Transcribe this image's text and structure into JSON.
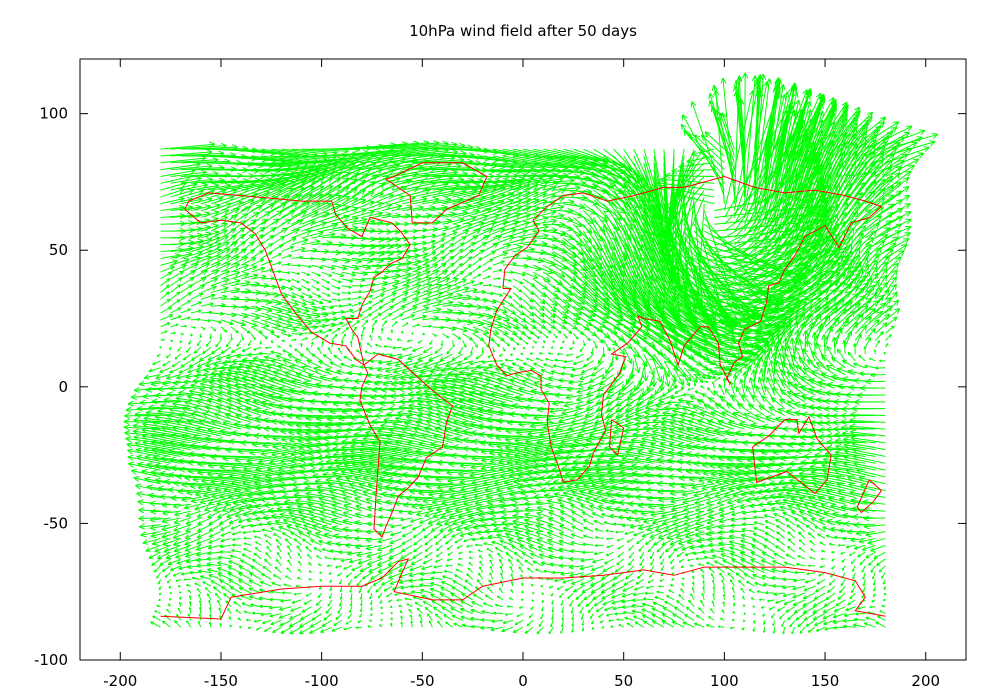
{
  "chart_data": {
    "type": "vector-field",
    "title": "10hPa wind field after 50 days",
    "xlabel": "",
    "ylabel": "",
    "xlim": [
      -220,
      220
    ],
    "ylim": [
      -100,
      120
    ],
    "x_ticks": [
      -200,
      -150,
      -100,
      -50,
      0,
      50,
      100,
      150,
      200
    ],
    "y_ticks": [
      -100,
      -50,
      0,
      50,
      100
    ],
    "grid": false,
    "legend": "none",
    "vector_color": "#00ff00",
    "coastline_color": "#ff0000",
    "frame_color": "#000000",
    "field_domain": {
      "lon": [
        -180,
        180
      ],
      "lat": [
        -88,
        88
      ]
    },
    "field_samples": [
      {
        "lat": 85,
        "u": 16,
        "v": 0
      },
      {
        "lat": 70,
        "u": 9,
        "v": 3
      },
      {
        "lat": 55,
        "u": 6,
        "v": 1
      },
      {
        "lat": 40,
        "u": 4,
        "v": 0.5
      },
      {
        "lat": 25,
        "u": 5,
        "v": 0
      },
      {
        "lat": 10,
        "u": -4,
        "v": 0
      },
      {
        "lat": 0,
        "u": -8,
        "v": 1
      },
      {
        "lat": -15,
        "u": -10,
        "v": 0.5
      },
      {
        "lat": -30,
        "u": -12,
        "v": 0
      },
      {
        "lat": -45,
        "u": -6,
        "v": 0
      },
      {
        "lat": -60,
        "u": -3,
        "v": 0
      },
      {
        "lat": -75,
        "u": -2,
        "v": 0
      },
      {
        "lat": -88,
        "u": -2,
        "v": 0
      }
    ],
    "vortex": {
      "lon": 95,
      "lat": 65,
      "strength": 30,
      "radius": 55
    },
    "coastlines": [
      {
        "name": "north-america",
        "points": [
          [
            -168,
            65
          ],
          [
            -160,
            60
          ],
          [
            -150,
            61
          ],
          [
            -140,
            60
          ],
          [
            -133,
            56
          ],
          [
            -128,
            50
          ],
          [
            -124,
            42
          ],
          [
            -120,
            34
          ],
          [
            -112,
            26
          ],
          [
            -105,
            20
          ],
          [
            -96,
            16
          ],
          [
            -88,
            15
          ],
          [
            -83,
            10
          ],
          [
            -79,
            8
          ],
          [
            -82,
            18
          ],
          [
            -85,
            21
          ],
          [
            -88,
            25
          ],
          [
            -82,
            25
          ],
          [
            -80,
            30
          ],
          [
            -76,
            35
          ],
          [
            -74,
            40
          ],
          [
            -70,
            42
          ],
          [
            -66,
            45
          ],
          [
            -60,
            47
          ],
          [
            -56,
            52
          ],
          [
            -61,
            57
          ],
          [
            -65,
            60
          ],
          [
            -76,
            62
          ],
          [
            -80,
            55
          ],
          [
            -87,
            58
          ],
          [
            -93,
            63
          ],
          [
            -95,
            68
          ],
          [
            -110,
            68
          ],
          [
            -125,
            69
          ],
          [
            -140,
            70
          ],
          [
            -156,
            71
          ],
          [
            -166,
            68
          ],
          [
            -168,
            65
          ]
        ]
      },
      {
        "name": "greenland",
        "points": [
          [
            -55,
            60
          ],
          [
            -45,
            60
          ],
          [
            -38,
            65
          ],
          [
            -22,
            70
          ],
          [
            -18,
            77
          ],
          [
            -30,
            82
          ],
          [
            -50,
            82
          ],
          [
            -64,
            77
          ],
          [
            -68,
            76
          ],
          [
            -56,
            70
          ],
          [
            -55,
            60
          ]
        ]
      },
      {
        "name": "south-america",
        "points": [
          [
            -79,
            8
          ],
          [
            -72,
            12
          ],
          [
            -62,
            10
          ],
          [
            -50,
            2
          ],
          [
            -44,
            -2
          ],
          [
            -35,
            -7
          ],
          [
            -38,
            -13
          ],
          [
            -40,
            -22
          ],
          [
            -48,
            -26
          ],
          [
            -52,
            -33
          ],
          [
            -57,
            -37
          ],
          [
            -62,
            -40
          ],
          [
            -65,
            -46
          ],
          [
            -68,
            -51
          ],
          [
            -70,
            -55
          ],
          [
            -74,
            -52
          ],
          [
            -73,
            -40
          ],
          [
            -72,
            -30
          ],
          [
            -71,
            -20
          ],
          [
            -76,
            -14
          ],
          [
            -81,
            -5
          ],
          [
            -80,
            0
          ],
          [
            -77,
            5
          ],
          [
            -79,
            8
          ]
        ]
      },
      {
        "name": "eurasia-africa",
        "points": [
          [
            -10,
            36
          ],
          [
            -9,
            43
          ],
          [
            -4,
            48
          ],
          [
            2,
            51
          ],
          [
            5,
            54
          ],
          [
            8,
            57
          ],
          [
            5,
            61
          ],
          [
            12,
            66
          ],
          [
            20,
            70
          ],
          [
            30,
            71
          ],
          [
            42,
            68
          ],
          [
            55,
            70
          ],
          [
            70,
            73
          ],
          [
            80,
            73
          ],
          [
            100,
            77
          ],
          [
            115,
            73
          ],
          [
            130,
            71
          ],
          [
            145,
            72
          ],
          [
            160,
            70
          ],
          [
            170,
            68
          ],
          [
            178,
            66
          ],
          [
            172,
            62
          ],
          [
            163,
            60
          ],
          [
            157,
            51
          ],
          [
            150,
            59
          ],
          [
            140,
            55
          ],
          [
            135,
            48
          ],
          [
            130,
            43
          ],
          [
            127,
            38
          ],
          [
            122,
            37
          ],
          [
            121,
            31
          ],
          [
            118,
            24
          ],
          [
            110,
            21
          ],
          [
            107,
            16
          ],
          [
            109,
            11
          ],
          [
            105,
            9
          ],
          [
            101,
            3
          ],
          [
            103,
            1
          ],
          [
            98,
            8
          ],
          [
            97,
            16
          ],
          [
            92,
            22
          ],
          [
            88,
            22
          ],
          [
            80,
            15
          ],
          [
            77,
            8
          ],
          [
            73,
            17
          ],
          [
            68,
            24
          ],
          [
            60,
            25
          ],
          [
            57,
            26
          ],
          [
            59,
            22
          ],
          [
            52,
            16
          ],
          [
            44,
            12
          ],
          [
            51,
            11
          ],
          [
            48,
            5
          ],
          [
            40,
            -3
          ],
          [
            39,
            -10
          ],
          [
            41,
            -16
          ],
          [
            35,
            -24
          ],
          [
            33,
            -29
          ],
          [
            27,
            -34
          ],
          [
            20,
            -35
          ],
          [
            18,
            -30
          ],
          [
            14,
            -22
          ],
          [
            12,
            -13
          ],
          [
            13,
            -6
          ],
          [
            9,
            -1
          ],
          [
            9,
            4
          ],
          [
            4,
            6
          ],
          [
            -4,
            5
          ],
          [
            -8,
            4
          ],
          [
            -13,
            8
          ],
          [
            -17,
            15
          ],
          [
            -16,
            21
          ],
          [
            -13,
            28
          ],
          [
            -6,
            36
          ],
          [
            -10,
            36
          ]
        ]
      },
      {
        "name": "madagascar",
        "points": [
          [
            44,
            -12
          ],
          [
            50,
            -15
          ],
          [
            47,
            -25
          ],
          [
            43,
            -22
          ],
          [
            44,
            -12
          ]
        ]
      },
      {
        "name": "australia",
        "points": [
          [
            114,
            -22
          ],
          [
            122,
            -18
          ],
          [
            130,
            -12
          ],
          [
            136,
            -12
          ],
          [
            137,
            -17
          ],
          [
            142,
            -11
          ],
          [
            146,
            -19
          ],
          [
            153,
            -25
          ],
          [
            151,
            -34
          ],
          [
            145,
            -39
          ],
          [
            138,
            -35
          ],
          [
            131,
            -31
          ],
          [
            116,
            -35
          ],
          [
            114,
            -22
          ]
        ]
      },
      {
        "name": "new-zealand",
        "points": [
          [
            172,
            -34
          ],
          [
            178,
            -38
          ],
          [
            174,
            -42
          ],
          [
            168,
            -46
          ],
          [
            166,
            -44
          ],
          [
            172,
            -34
          ]
        ]
      },
      {
        "name": "antarctica",
        "points": [
          [
            -180,
            -84
          ],
          [
            -150,
            -85
          ],
          [
            -145,
            -77
          ],
          [
            -120,
            -74
          ],
          [
            -100,
            -73
          ],
          [
            -80,
            -73
          ],
          [
            -70,
            -70
          ],
          [
            -62,
            -64
          ],
          [
            -57,
            -63
          ],
          [
            -60,
            -68
          ],
          [
            -64,
            -75
          ],
          [
            -45,
            -78
          ],
          [
            -30,
            -78
          ],
          [
            -20,
            -73
          ],
          [
            0,
            -70
          ],
          [
            20,
            -70
          ],
          [
            40,
            -69
          ],
          [
            60,
            -67
          ],
          [
            75,
            -69
          ],
          [
            90,
            -66
          ],
          [
            110,
            -66
          ],
          [
            130,
            -66
          ],
          [
            150,
            -68
          ],
          [
            165,
            -71
          ],
          [
            170,
            -77
          ],
          [
            165,
            -82
          ],
          [
            180,
            -84
          ]
        ]
      }
    ]
  }
}
